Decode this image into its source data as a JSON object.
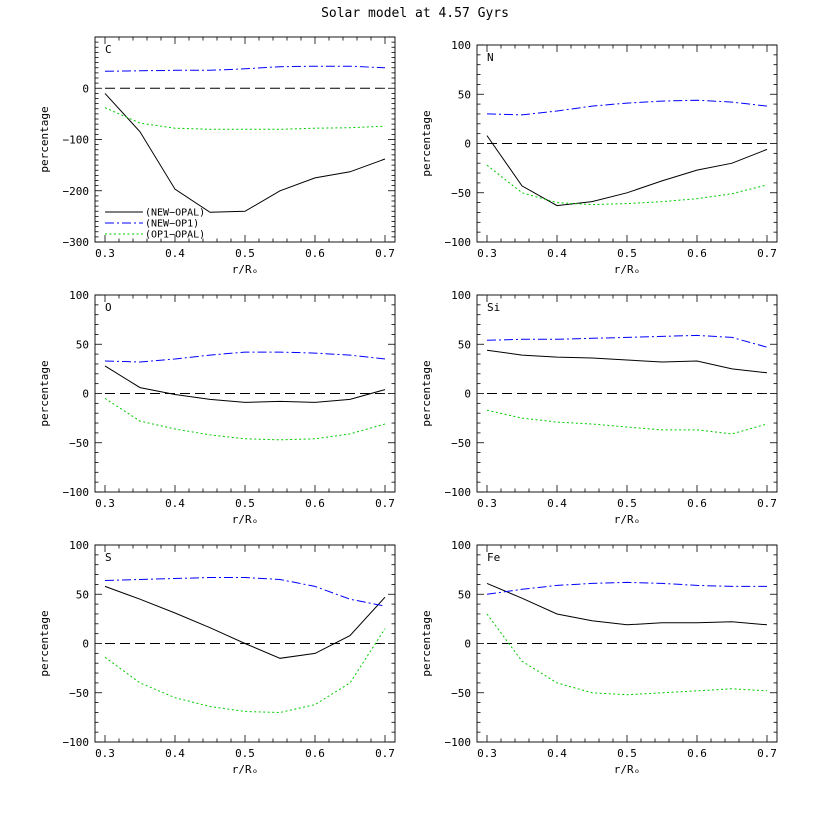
{
  "figure_title": "Solar model at 4.57 Gyrs",
  "chart_data": [
    {
      "type": "line",
      "panel_label": "C",
      "xlabel": "r/Rₒ",
      "ylabel": "percentage",
      "xlim": [
        0.3,
        0.7
      ],
      "ylim": [
        -300,
        100
      ],
      "xticks": [
        "0.3",
        "0.4",
        "0.5",
        "0.6",
        "0.7"
      ],
      "yticks": [
        "−300",
        "−200",
        "−100",
        "0",
        ""
      ],
      "x": [
        0.3,
        0.35,
        0.4,
        0.45,
        0.5,
        0.55,
        0.6,
        0.65,
        0.7
      ],
      "legend": true,
      "series": [
        {
          "name": "(NEW−OPAL)",
          "color": "#000000",
          "dash": "solid",
          "values": [
            -10,
            -85,
            -197,
            -242,
            -240,
            -200,
            -175,
            -163,
            -138
          ]
        },
        {
          "name": "(NEW−OP1)",
          "color": "#0000ff",
          "dash": "dashdot",
          "values": [
            33,
            34,
            35,
            35,
            38,
            42,
            43,
            43,
            40
          ]
        },
        {
          "name": "(OP1−OPAL)",
          "color": "#00cc00",
          "dash": "dotted",
          "values": [
            -38,
            -68,
            -78,
            -80,
            -80,
            -80,
            -78,
            -77,
            -74
          ]
        }
      ]
    },
    {
      "type": "line",
      "panel_label": "N",
      "xlabel": "r/Rₒ",
      "ylabel": "percentage",
      "xlim": [
        0.3,
        0.7
      ],
      "ylim": [
        -100,
        100
      ],
      "xticks": [
        "0.3",
        "0.4",
        "0.5",
        "0.6",
        "0.7"
      ],
      "yticks": [
        "−100",
        "−50",
        "0",
        "50",
        "100"
      ],
      "x": [
        0.3,
        0.35,
        0.4,
        0.45,
        0.5,
        0.55,
        0.6,
        0.65,
        0.7
      ],
      "legend": false,
      "series": [
        {
          "color": "#000000",
          "dash": "solid",
          "values": [
            8,
            -43,
            -63,
            -59,
            -50,
            -38,
            -27,
            -20,
            -6
          ]
        },
        {
          "color": "#0000ff",
          "dash": "dashdot",
          "values": [
            30,
            29,
            33,
            38,
            41,
            43,
            44,
            42,
            38
          ]
        },
        {
          "color": "#00cc00",
          "dash": "dotted",
          "values": [
            -22,
            -50,
            -60,
            -62,
            -61,
            -59,
            -56,
            -51,
            -42
          ]
        }
      ]
    },
    {
      "type": "line",
      "panel_label": "O",
      "xlabel": "r/Rₒ",
      "ylabel": "percentage",
      "xlim": [
        0.3,
        0.7
      ],
      "ylim": [
        -100,
        100
      ],
      "xticks": [
        "0.3",
        "0.4",
        "0.5",
        "0.6",
        "0.7"
      ],
      "yticks": [
        "−100",
        "−50",
        "0",
        "50",
        "100"
      ],
      "x": [
        0.3,
        0.35,
        0.4,
        0.45,
        0.5,
        0.55,
        0.6,
        0.65,
        0.7
      ],
      "legend": false,
      "series": [
        {
          "color": "#000000",
          "dash": "solid",
          "values": [
            28,
            6,
            -1,
            -6,
            -9,
            -8,
            -9,
            -6,
            4
          ]
        },
        {
          "color": "#0000ff",
          "dash": "dashdot",
          "values": [
            33,
            32,
            35,
            39,
            42,
            42,
            41,
            39,
            35
          ]
        },
        {
          "color": "#00cc00",
          "dash": "dotted",
          "values": [
            -5,
            -28,
            -36,
            -42,
            -46,
            -47,
            -46,
            -41,
            -31
          ]
        }
      ]
    },
    {
      "type": "line",
      "panel_label": "Si",
      "xlabel": "r/Rₒ",
      "ylabel": "percentage",
      "xlim": [
        0.3,
        0.7
      ],
      "ylim": [
        -100,
        100
      ],
      "xticks": [
        "0.3",
        "0.4",
        "0.5",
        "0.6",
        "0.7"
      ],
      "yticks": [
        "−100",
        "−50",
        "0",
        "50",
        "100"
      ],
      "x": [
        0.3,
        0.35,
        0.4,
        0.45,
        0.5,
        0.55,
        0.6,
        0.65,
        0.7
      ],
      "legend": false,
      "series": [
        {
          "color": "#000000",
          "dash": "solid",
          "values": [
            44,
            39,
            37,
            36,
            34,
            32,
            33,
            25,
            21
          ]
        },
        {
          "color": "#0000ff",
          "dash": "dashdot",
          "values": [
            54,
            55,
            55,
            56,
            57,
            58,
            59,
            57,
            47
          ]
        },
        {
          "color": "#00cc00",
          "dash": "dotted",
          "values": [
            -17,
            -25,
            -29,
            -31,
            -34,
            -37,
            -37,
            -41,
            -31
          ]
        }
      ]
    },
    {
      "type": "line",
      "panel_label": "S",
      "xlabel": "r/Rₒ",
      "ylabel": "percentage",
      "xlim": [
        0.3,
        0.7
      ],
      "ylim": [
        -100,
        100
      ],
      "xticks": [
        "0.3",
        "0.4",
        "0.5",
        "0.6",
        "0.7"
      ],
      "yticks": [
        "−100",
        "−50",
        "0",
        "50",
        "100"
      ],
      "x": [
        0.3,
        0.35,
        0.4,
        0.45,
        0.5,
        0.55,
        0.6,
        0.65,
        0.7
      ],
      "legend": false,
      "series": [
        {
          "color": "#000000",
          "dash": "solid",
          "values": [
            58,
            45,
            31,
            16,
            0,
            -15,
            -10,
            8,
            47
          ]
        },
        {
          "color": "#0000ff",
          "dash": "dashdot",
          "values": [
            64,
            65,
            66,
            67,
            67,
            65,
            58,
            45,
            38
          ]
        },
        {
          "color": "#00cc00",
          "dash": "dotted",
          "values": [
            -14,
            -40,
            -55,
            -64,
            -69,
            -70,
            -62,
            -40,
            15
          ]
        }
      ]
    },
    {
      "type": "line",
      "panel_label": "Fe",
      "xlabel": "r/Rₒ",
      "ylabel": "percentage",
      "xlim": [
        0.3,
        0.7
      ],
      "ylim": [
        -100,
        100
      ],
      "xticks": [
        "0.3",
        "0.4",
        "0.5",
        "0.6",
        "0.7"
      ],
      "yticks": [
        "−100",
        "−50",
        "0",
        "50",
        "100"
      ],
      "x": [
        0.3,
        0.35,
        0.4,
        0.45,
        0.5,
        0.55,
        0.6,
        0.65,
        0.7
      ],
      "legend": false,
      "series": [
        {
          "color": "#000000",
          "dash": "solid",
          "values": [
            61,
            46,
            30,
            23,
            19,
            21,
            21,
            22,
            19
          ]
        },
        {
          "color": "#0000ff",
          "dash": "dashdot",
          "values": [
            50,
            55,
            59,
            61,
            62,
            61,
            59,
            58,
            58
          ]
        },
        {
          "color": "#00cc00",
          "dash": "dotted",
          "values": [
            30,
            -18,
            -40,
            -50,
            -52,
            -50,
            -48,
            -46,
            -48
          ]
        }
      ]
    }
  ]
}
